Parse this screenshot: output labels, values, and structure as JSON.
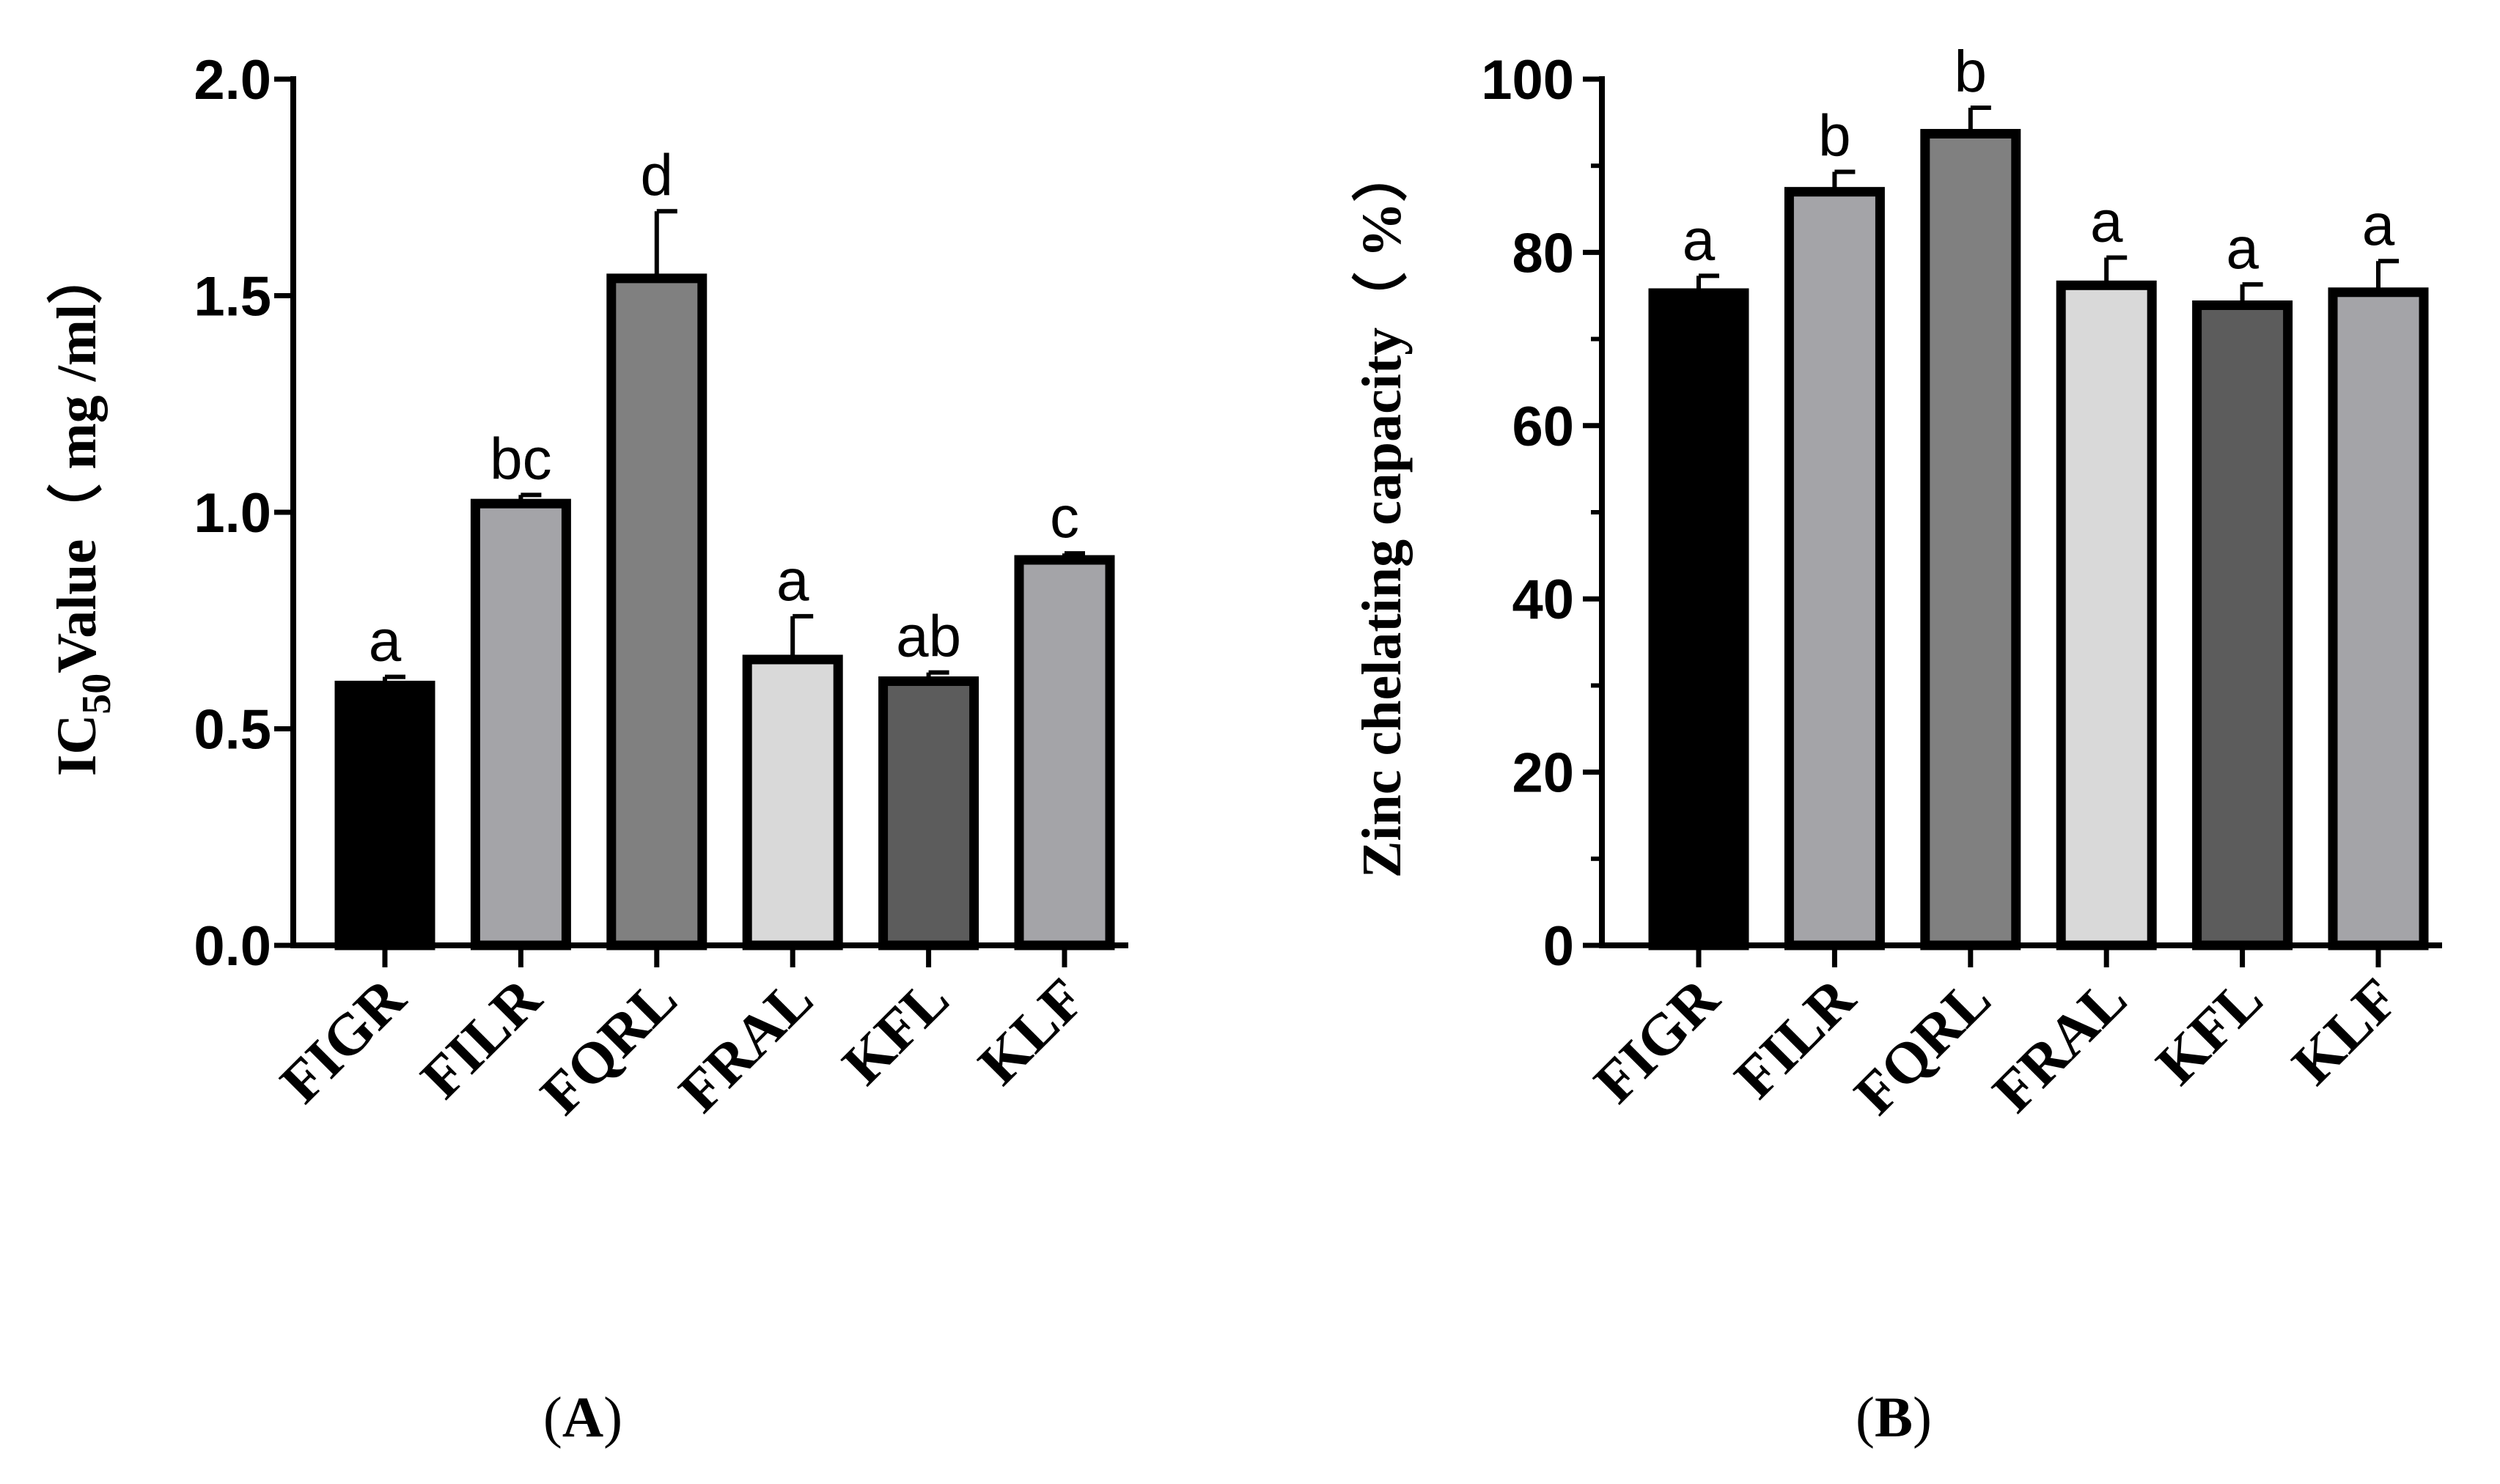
{
  "chart_data": [
    {
      "type": "bar",
      "panel": "A",
      "categories": [
        "FIGR",
        "FILR",
        "FQRL",
        "FRAL",
        "KFL",
        "KLF"
      ],
      "values": [
        0.6,
        1.02,
        1.54,
        0.66,
        0.61,
        0.89
      ],
      "errors": [
        0.02,
        0.02,
        0.155,
        0.1,
        0.02,
        0.015
      ],
      "significance": [
        "a",
        "bc",
        "d",
        "a",
        "ab",
        "c"
      ],
      "bar_colors": [
        "#000000",
        "#a4a4a8",
        "#808080",
        "#d9d9d9",
        "#5c5c5c",
        "#a4a4a8"
      ],
      "ylabel": {
        "prefix": "IC",
        "sub": "50",
        "suffix": "Value（ mg /ml）"
      },
      "ylim": [
        0,
        2.0
      ],
      "yticks": [
        "0.0",
        "0.5",
        "1.0",
        "1.5",
        "2.0"
      ],
      "ytick_values": [
        0,
        0.5,
        1.0,
        1.5,
        2.0
      ],
      "minor_ticks": false,
      "grid": false
    },
    {
      "type": "bar",
      "panel": "B",
      "categories": [
        "FIGR",
        "FILR",
        "FQRL",
        "FRAL",
        "KFL",
        "KLF"
      ],
      "values": [
        75.3,
        87.0,
        93.7,
        76.2,
        73.9,
        75.4
      ],
      "errors": [
        2.0,
        2.3,
        3.0,
        3.2,
        2.4,
        3.6
      ],
      "significance": [
        "a",
        "b",
        "b",
        "a",
        "a",
        "a"
      ],
      "bar_colors": [
        "#000000",
        "#a4a4a8",
        "#808080",
        "#d9d9d9",
        "#5c5c5c",
        "#a4a4a8"
      ],
      "ylabel": {
        "prefix": "Zinc chelating capacity（ %）",
        "sub": "",
        "suffix": ""
      },
      "ylim": [
        0,
        100
      ],
      "yticks": [
        "0",
        "20",
        "40",
        "60",
        "80",
        "100"
      ],
      "ytick_values": [
        0,
        20,
        40,
        60,
        80,
        100
      ],
      "minor_ticks": true,
      "grid": false
    }
  ],
  "panel_labels": [
    {
      "open": "(",
      "letter": "A",
      "close": ")"
    },
    {
      "open": "(",
      "letter": "B",
      "close": ")"
    }
  ]
}
